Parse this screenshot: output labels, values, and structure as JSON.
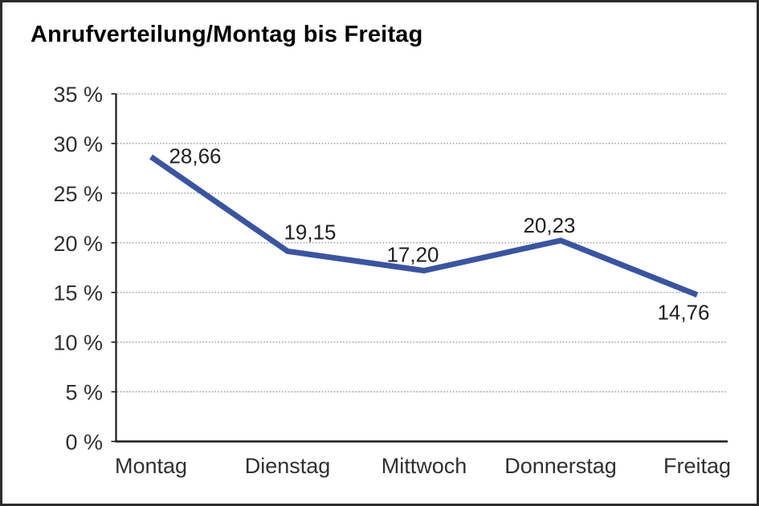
{
  "chart_data": {
    "type": "line",
    "title": "Anrufverteilung/Montag bis Freitag",
    "categories": [
      "Montag",
      "Dienstag",
      "Mittwoch",
      "Donnerstag",
      "Freitag"
    ],
    "values": [
      28.66,
      19.15,
      17.2,
      20.23,
      14.76
    ],
    "value_labels": [
      "28,66",
      "19,15",
      "17,20",
      "20,23",
      "14,76"
    ],
    "y_tick_labels": [
      "0 %",
      "5 %",
      "10 %",
      "15 %",
      "20 %",
      "25 %",
      "30 %",
      "35 %"
    ],
    "ylim": [
      0,
      35
    ],
    "y_tick_step": 5,
    "xlabel": "",
    "ylabel": "",
    "grid": "horizontal-dotted",
    "legend": "none",
    "line_color": "#3A55A0",
    "axis_color": "#1a1a1a",
    "gridline_color": "#888888",
    "label_color": "#303030",
    "value_label_color": "#1f1f1f"
  }
}
